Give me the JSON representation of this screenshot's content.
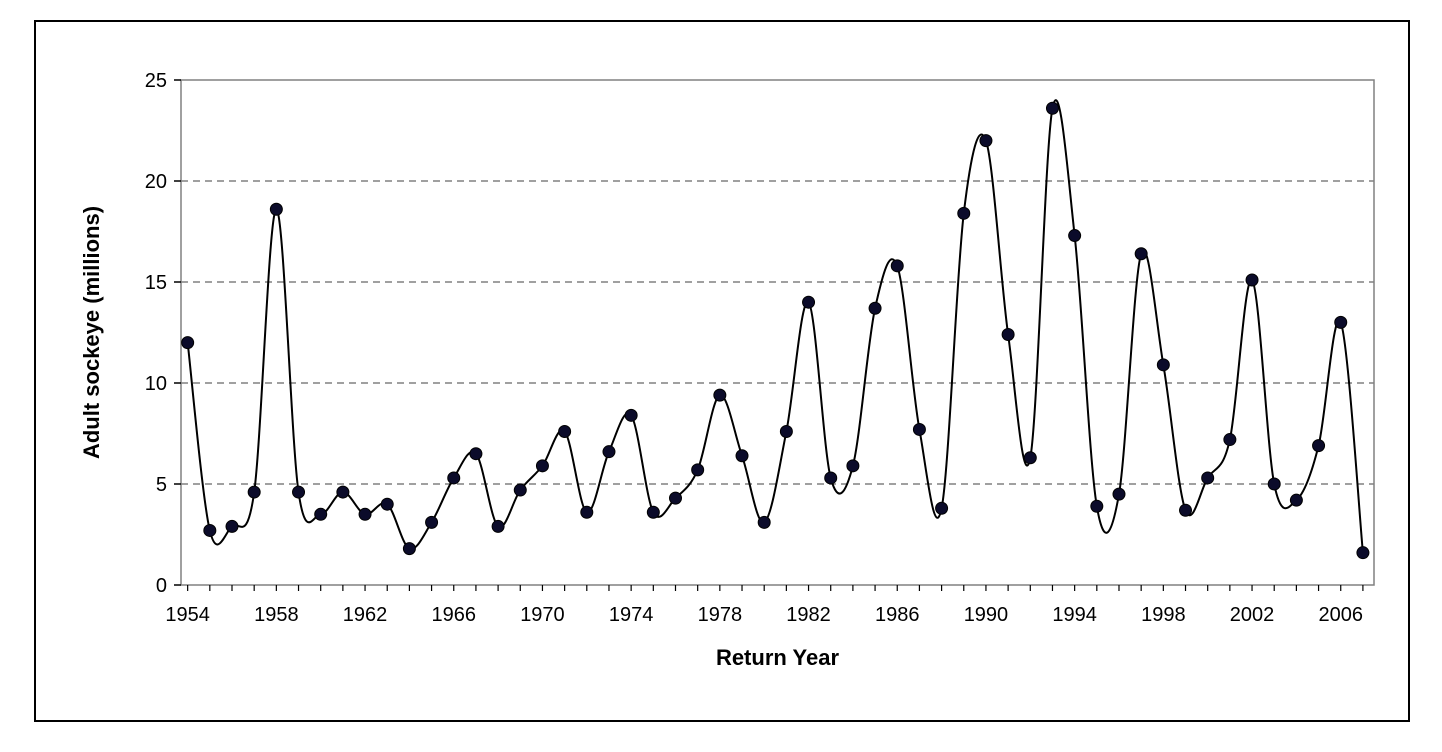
{
  "chart_data": {
    "type": "line",
    "title": "",
    "xlabel": "Return Year",
    "ylabel": "Adult sockeye  (millions)",
    "xlim": [
      1954,
      2007
    ],
    "ylim": [
      0,
      25
    ],
    "x_ticks": [
      1954,
      1958,
      1962,
      1966,
      1970,
      1974,
      1978,
      1982,
      1986,
      1990,
      1994,
      1998,
      2002,
      2006
    ],
    "y_ticks": [
      0,
      5,
      10,
      15,
      20,
      25
    ],
    "grid": "horizontal dashed",
    "legend": "none",
    "line_style": "smoothed",
    "colors": {
      "line": "#000000",
      "marker": "#0b0b2a",
      "grid": "#808080",
      "plot_border": "#808080"
    },
    "series": [
      {
        "x": [
          1954,
          1955,
          1956,
          1957,
          1958,
          1959,
          1960,
          1961,
          1962,
          1963,
          1964,
          1965,
          1966,
          1967,
          1968,
          1969,
          1970,
          1971,
          1972,
          1973,
          1974,
          1975,
          1976,
          1977,
          1978,
          1979,
          1980,
          1981,
          1982,
          1983,
          1984,
          1985,
          1986,
          1987,
          1988,
          1989,
          1990,
          1991,
          1992,
          1993,
          1994,
          1995,
          1996,
          1997,
          1998,
          1999,
          2000,
          2001,
          2002,
          2003,
          2004,
          2005,
          2006,
          2007
        ],
        "values": [
          12.0,
          2.7,
          2.9,
          4.6,
          18.6,
          4.6,
          3.5,
          4.6,
          3.5,
          4.0,
          1.8,
          3.1,
          5.3,
          6.5,
          2.9,
          4.7,
          5.9,
          7.6,
          3.6,
          6.6,
          8.4,
          3.6,
          4.3,
          5.7,
          9.4,
          6.4,
          3.1,
          7.6,
          14.0,
          5.3,
          5.9,
          13.7,
          15.8,
          7.7,
          3.8,
          18.4,
          22.0,
          12.4,
          6.3,
          23.6,
          17.3,
          3.9,
          4.5,
          16.4,
          10.9,
          3.7,
          5.3,
          7.2,
          15.1,
          5.0,
          4.2,
          6.9,
          13.0,
          1.6
        ]
      }
    ]
  }
}
